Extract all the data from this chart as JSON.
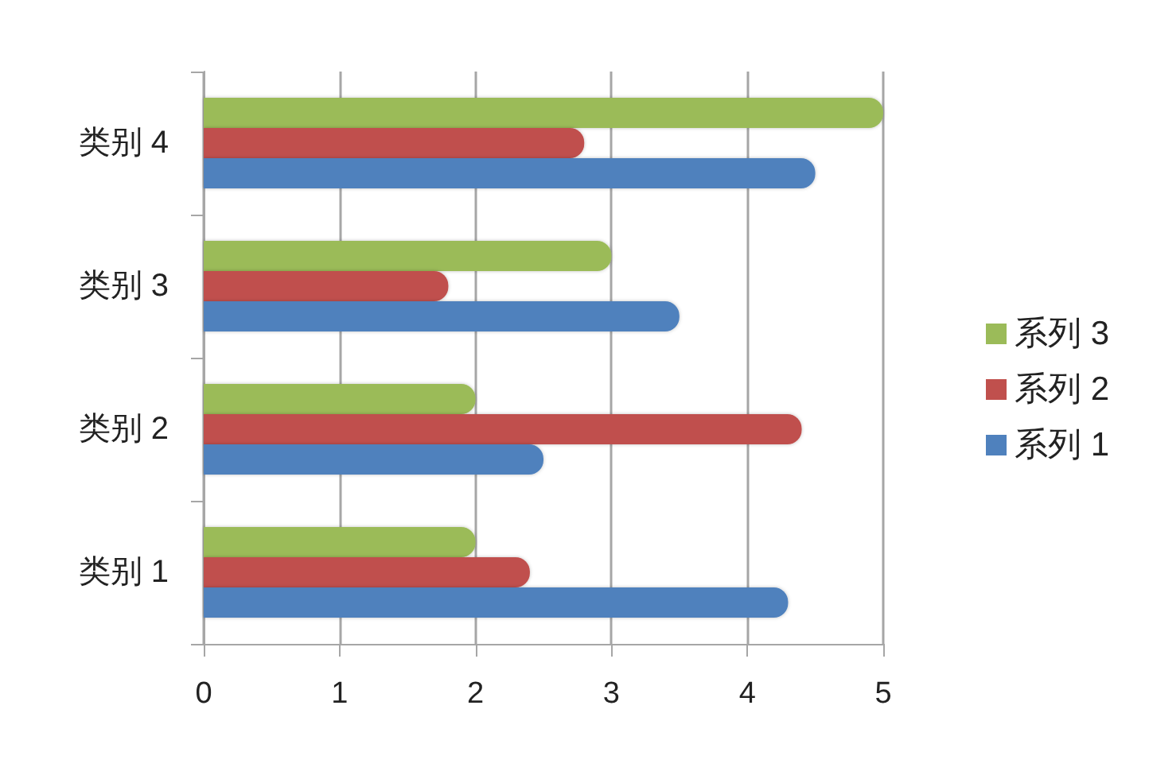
{
  "chart_data": {
    "type": "bar",
    "orientation": "horizontal",
    "categories": [
      "类别 4",
      "类别 3",
      "类别 2",
      "类别 1"
    ],
    "series": [
      {
        "name": "系列 1",
        "color": "#4f81bd",
        "values": [
          4.5,
          3.5,
          2.5,
          4.3
        ]
      },
      {
        "name": "系列 2",
        "color": "#c0504d",
        "values": [
          2.8,
          1.8,
          4.4,
          2.4
        ]
      },
      {
        "name": "系列 3",
        "color": "#9bbb59",
        "values": [
          5,
          3,
          2,
          2
        ]
      }
    ],
    "xlim": [
      0,
      5
    ],
    "xticks": [
      0,
      1,
      2,
      3,
      4,
      5
    ],
    "grid": "x",
    "legend": "right"
  }
}
